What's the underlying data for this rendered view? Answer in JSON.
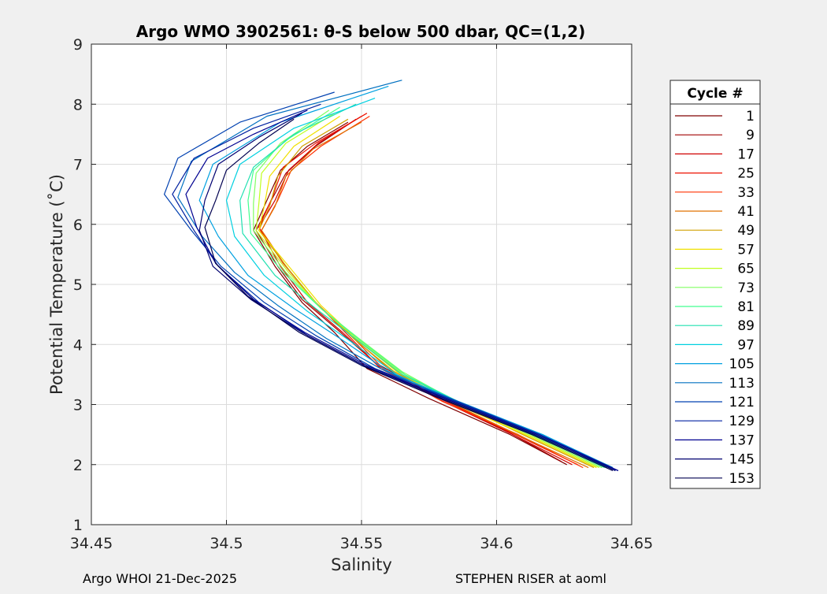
{
  "chart_data": {
    "type": "line",
    "title": "Argo WMO 3902561: θ-S below 500 dbar,  QC=(1,2)",
    "xlabel": "Salinity",
    "ylabel": "Potential Temperature (˚C)",
    "xlim": [
      34.45,
      34.65
    ],
    "ylim": [
      1,
      9
    ],
    "xticks": [
      34.45,
      34.5,
      34.55,
      34.6,
      34.65
    ],
    "xtick_labels": [
      "34.45",
      "34.5",
      "34.55",
      "34.6",
      "34.65"
    ],
    "yticks": [
      1,
      2,
      3,
      4,
      5,
      6,
      7,
      8,
      9
    ],
    "ytick_labels": [
      "1",
      "2",
      "3",
      "4",
      "5",
      "6",
      "7",
      "8",
      "9"
    ],
    "grid": true,
    "legend": {
      "title": "Cycle #",
      "position": "right-outside",
      "entries": [
        "1",
        "9",
        "17",
        "25",
        "33",
        "41",
        "49",
        "57",
        "65",
        "73",
        "81",
        "89",
        "97",
        "105",
        "113",
        "121",
        "129",
        "137",
        "145",
        "153"
      ],
      "colors": [
        "#800000",
        "#A00000",
        "#D00000",
        "#EE1000",
        "#FF3000",
        "#E07000",
        "#D0A000",
        "#F0E000",
        "#C0FF20",
        "#80FF60",
        "#40FF90",
        "#20E0B0",
        "#00D0E0",
        "#00A0E0",
        "#0070C0",
        "#0040B0",
        "#0020A0",
        "#000090",
        "#000070",
        "#000050"
      ]
    },
    "series_note_free": null,
    "series": [
      {
        "cycle": 1,
        "color": "#800000",
        "points": [
          [
            34.626,
            2.0
          ],
          [
            34.605,
            2.5
          ],
          [
            34.575,
            3.1
          ],
          [
            34.552,
            3.6
          ],
          [
            34.54,
            4.2
          ],
          [
            34.528,
            4.7
          ],
          [
            34.518,
            5.3
          ],
          [
            34.51,
            5.9
          ],
          [
            34.515,
            6.4
          ],
          [
            34.52,
            6.9
          ],
          [
            34.53,
            7.3
          ],
          [
            34.545,
            7.7
          ]
        ]
      },
      {
        "cycle": 9,
        "color": "#A00000",
        "points": [
          [
            34.624,
            2.05
          ],
          [
            34.604,
            2.55
          ],
          [
            34.577,
            3.15
          ],
          [
            34.555,
            3.7
          ],
          [
            34.541,
            4.25
          ],
          [
            34.528,
            4.75
          ],
          [
            34.519,
            5.3
          ],
          [
            34.511,
            5.9
          ],
          [
            34.516,
            6.35
          ],
          [
            34.522,
            6.85
          ],
          [
            34.533,
            7.3
          ],
          [
            34.548,
            7.75
          ]
        ]
      },
      {
        "cycle": 17,
        "color": "#D00000",
        "points": [
          [
            34.628,
            2.0
          ],
          [
            34.606,
            2.5
          ],
          [
            34.578,
            3.1
          ],
          [
            34.556,
            3.65
          ],
          [
            34.543,
            4.2
          ],
          [
            34.53,
            4.7
          ],
          [
            34.52,
            5.3
          ],
          [
            34.512,
            5.95
          ],
          [
            34.518,
            6.4
          ],
          [
            34.523,
            6.9
          ],
          [
            34.534,
            7.35
          ],
          [
            34.55,
            7.8
          ]
        ]
      },
      {
        "cycle": 25,
        "color": "#EE1000",
        "points": [
          [
            34.63,
            2.0
          ],
          [
            34.607,
            2.5
          ],
          [
            34.579,
            3.1
          ],
          [
            34.557,
            3.6
          ],
          [
            34.544,
            4.2
          ],
          [
            34.532,
            4.75
          ],
          [
            34.521,
            5.35
          ],
          [
            34.512,
            5.95
          ],
          [
            34.517,
            6.45
          ],
          [
            34.521,
            6.95
          ],
          [
            34.533,
            7.35
          ],
          [
            34.552,
            7.85
          ]
        ]
      },
      {
        "cycle": 33,
        "color": "#FF3000",
        "points": [
          [
            34.632,
            1.95
          ],
          [
            34.608,
            2.5
          ],
          [
            34.58,
            3.05
          ],
          [
            34.558,
            3.6
          ],
          [
            34.545,
            4.2
          ],
          [
            34.533,
            4.7
          ],
          [
            34.522,
            5.3
          ],
          [
            34.513,
            5.9
          ],
          [
            34.519,
            6.4
          ],
          [
            34.524,
            6.9
          ],
          [
            34.535,
            7.3
          ],
          [
            34.553,
            7.8
          ]
        ]
      },
      {
        "cycle": 41,
        "color": "#E07000",
        "points": [
          [
            34.634,
            1.95
          ],
          [
            34.61,
            2.45
          ],
          [
            34.582,
            3.05
          ],
          [
            34.56,
            3.6
          ],
          [
            34.546,
            4.15
          ],
          [
            34.533,
            4.7
          ],
          [
            34.522,
            5.3
          ],
          [
            34.513,
            5.9
          ],
          [
            34.518,
            6.3
          ],
          [
            34.522,
            6.8
          ],
          [
            34.532,
            7.25
          ],
          [
            34.55,
            7.7
          ]
        ]
      },
      {
        "cycle": 49,
        "color": "#D0A000",
        "points": [
          [
            34.636,
            1.95
          ],
          [
            34.612,
            2.45
          ],
          [
            34.584,
            3.05
          ],
          [
            34.562,
            3.55
          ],
          [
            34.547,
            4.1
          ],
          [
            34.534,
            4.65
          ],
          [
            34.523,
            5.25
          ],
          [
            34.512,
            5.9
          ],
          [
            34.516,
            6.3
          ],
          [
            34.519,
            6.8
          ],
          [
            34.528,
            7.3
          ],
          [
            34.545,
            7.75
          ]
        ]
      },
      {
        "cycle": 57,
        "color": "#F0E000",
        "points": [
          [
            34.637,
            1.95
          ],
          [
            34.613,
            2.45
          ],
          [
            34.585,
            3.0
          ],
          [
            34.563,
            3.55
          ],
          [
            34.548,
            4.1
          ],
          [
            34.535,
            4.65
          ],
          [
            34.524,
            5.25
          ],
          [
            34.512,
            5.9
          ],
          [
            34.514,
            6.3
          ],
          [
            34.516,
            6.8
          ],
          [
            34.525,
            7.3
          ],
          [
            34.542,
            7.8
          ]
        ]
      },
      {
        "cycle": 65,
        "color": "#C0FF20",
        "points": [
          [
            34.638,
            1.95
          ],
          [
            34.614,
            2.45
          ],
          [
            34.586,
            3.0
          ],
          [
            34.564,
            3.55
          ],
          [
            34.548,
            4.1
          ],
          [
            34.535,
            4.6
          ],
          [
            34.523,
            5.2
          ],
          [
            34.511,
            5.9
          ],
          [
            34.512,
            6.35
          ],
          [
            34.513,
            6.85
          ],
          [
            34.522,
            7.35
          ],
          [
            34.54,
            7.85
          ]
        ]
      },
      {
        "cycle": 73,
        "color": "#80FF60",
        "points": [
          [
            34.639,
            1.95
          ],
          [
            34.615,
            2.45
          ],
          [
            34.587,
            3.0
          ],
          [
            34.565,
            3.55
          ],
          [
            34.549,
            4.1
          ],
          [
            34.535,
            4.6
          ],
          [
            34.522,
            5.2
          ],
          [
            34.51,
            5.9
          ],
          [
            34.51,
            6.35
          ],
          [
            34.511,
            6.85
          ],
          [
            34.52,
            7.35
          ],
          [
            34.538,
            7.9
          ]
        ]
      },
      {
        "cycle": 81,
        "color": "#40FF90",
        "points": [
          [
            34.64,
            1.95
          ],
          [
            34.616,
            2.45
          ],
          [
            34.588,
            3.0
          ],
          [
            34.566,
            3.5
          ],
          [
            34.55,
            4.05
          ],
          [
            34.535,
            4.6
          ],
          [
            34.521,
            5.2
          ],
          [
            34.509,
            5.85
          ],
          [
            34.508,
            6.4
          ],
          [
            34.51,
            6.9
          ],
          [
            34.522,
            7.4
          ],
          [
            34.542,
            7.95
          ]
        ]
      },
      {
        "cycle": 89,
        "color": "#20E0B0",
        "points": [
          [
            34.641,
            1.95
          ],
          [
            34.617,
            2.45
          ],
          [
            34.588,
            3.0
          ],
          [
            34.565,
            3.5
          ],
          [
            34.549,
            4.05
          ],
          [
            34.533,
            4.6
          ],
          [
            34.518,
            5.15
          ],
          [
            34.506,
            5.85
          ],
          [
            34.505,
            6.4
          ],
          [
            34.51,
            6.95
          ],
          [
            34.525,
            7.5
          ],
          [
            34.548,
            8.0
          ]
        ]
      },
      {
        "cycle": 97,
        "color": "#00D0E0",
        "points": [
          [
            34.642,
            1.95
          ],
          [
            34.617,
            2.5
          ],
          [
            34.587,
            3.0
          ],
          [
            34.563,
            3.5
          ],
          [
            34.546,
            4.05
          ],
          [
            34.53,
            4.55
          ],
          [
            34.514,
            5.15
          ],
          [
            34.503,
            5.8
          ],
          [
            34.5,
            6.4
          ],
          [
            34.505,
            7.0
          ],
          [
            34.525,
            7.6
          ],
          [
            34.555,
            8.1
          ]
        ]
      },
      {
        "cycle": 105,
        "color": "#00A0E0",
        "points": [
          [
            34.643,
            1.95
          ],
          [
            34.617,
            2.5
          ],
          [
            34.586,
            3.05
          ],
          [
            34.56,
            3.55
          ],
          [
            34.542,
            4.1
          ],
          [
            34.525,
            4.6
          ],
          [
            34.508,
            5.15
          ],
          [
            34.497,
            5.8
          ],
          [
            34.49,
            6.4
          ],
          [
            34.495,
            7.0
          ],
          [
            34.52,
            7.7
          ],
          [
            34.56,
            8.3
          ]
        ]
      },
      {
        "cycle": 113,
        "color": "#0070C0",
        "points": [
          [
            34.643,
            1.95
          ],
          [
            34.616,
            2.5
          ],
          [
            34.584,
            3.05
          ],
          [
            34.557,
            3.6
          ],
          [
            34.537,
            4.1
          ],
          [
            34.519,
            4.65
          ],
          [
            34.503,
            5.2
          ],
          [
            34.491,
            5.8
          ],
          [
            34.482,
            6.45
          ],
          [
            34.487,
            7.05
          ],
          [
            34.515,
            7.8
          ],
          [
            34.565,
            8.4
          ]
        ]
      },
      {
        "cycle": 121,
        "color": "#0040B0",
        "points": [
          [
            34.644,
            1.9
          ],
          [
            34.616,
            2.5
          ],
          [
            34.583,
            3.1
          ],
          [
            34.555,
            3.6
          ],
          [
            34.533,
            4.15
          ],
          [
            34.514,
            4.7
          ],
          [
            34.498,
            5.3
          ],
          [
            34.487,
            5.9
          ],
          [
            34.477,
            6.5
          ],
          [
            34.482,
            7.1
          ],
          [
            34.505,
            7.7
          ],
          [
            34.54,
            8.2
          ]
        ]
      },
      {
        "cycle": 129,
        "color": "#0020A0",
        "points": [
          [
            34.645,
            1.9
          ],
          [
            34.616,
            2.5
          ],
          [
            34.582,
            3.1
          ],
          [
            34.553,
            3.6
          ],
          [
            34.53,
            4.15
          ],
          [
            34.512,
            4.7
          ],
          [
            34.497,
            5.3
          ],
          [
            34.488,
            5.9
          ],
          [
            34.48,
            6.5
          ],
          [
            34.488,
            7.1
          ],
          [
            34.51,
            7.6
          ],
          [
            34.535,
            8.0
          ]
        ]
      },
      {
        "cycle": 137,
        "color": "#000090",
        "points": [
          [
            34.645,
            1.9
          ],
          [
            34.615,
            2.5
          ],
          [
            34.581,
            3.1
          ],
          [
            34.552,
            3.65
          ],
          [
            34.529,
            4.2
          ],
          [
            34.51,
            4.75
          ],
          [
            34.496,
            5.35
          ],
          [
            34.489,
            5.95
          ],
          [
            34.485,
            6.5
          ],
          [
            34.493,
            7.1
          ],
          [
            34.51,
            7.5
          ],
          [
            34.53,
            7.9
          ]
        ]
      },
      {
        "cycle": 145,
        "color": "#000070",
        "points": [
          [
            34.644,
            1.9
          ],
          [
            34.614,
            2.5
          ],
          [
            34.58,
            3.1
          ],
          [
            34.551,
            3.65
          ],
          [
            34.528,
            4.2
          ],
          [
            34.509,
            4.75
          ],
          [
            34.495,
            5.3
          ],
          [
            34.49,
            5.9
          ],
          [
            34.492,
            6.4
          ],
          [
            34.497,
            7.0
          ],
          [
            34.512,
            7.45
          ],
          [
            34.528,
            7.85
          ]
        ]
      },
      {
        "cycle": 153,
        "color": "#000050",
        "points": [
          [
            34.643,
            1.9
          ],
          [
            34.613,
            2.5
          ],
          [
            34.579,
            3.1
          ],
          [
            34.55,
            3.65
          ],
          [
            34.527,
            4.2
          ],
          [
            34.508,
            4.8
          ],
          [
            34.496,
            5.35
          ],
          [
            34.492,
            5.95
          ],
          [
            34.496,
            6.4
          ],
          [
            34.5,
            6.9
          ],
          [
            34.512,
            7.35
          ],
          [
            34.525,
            7.75
          ]
        ]
      }
    ]
  },
  "footer": {
    "left": "Argo WHOI 21-Dec-2025",
    "right": "STEPHEN RISER at aoml"
  }
}
